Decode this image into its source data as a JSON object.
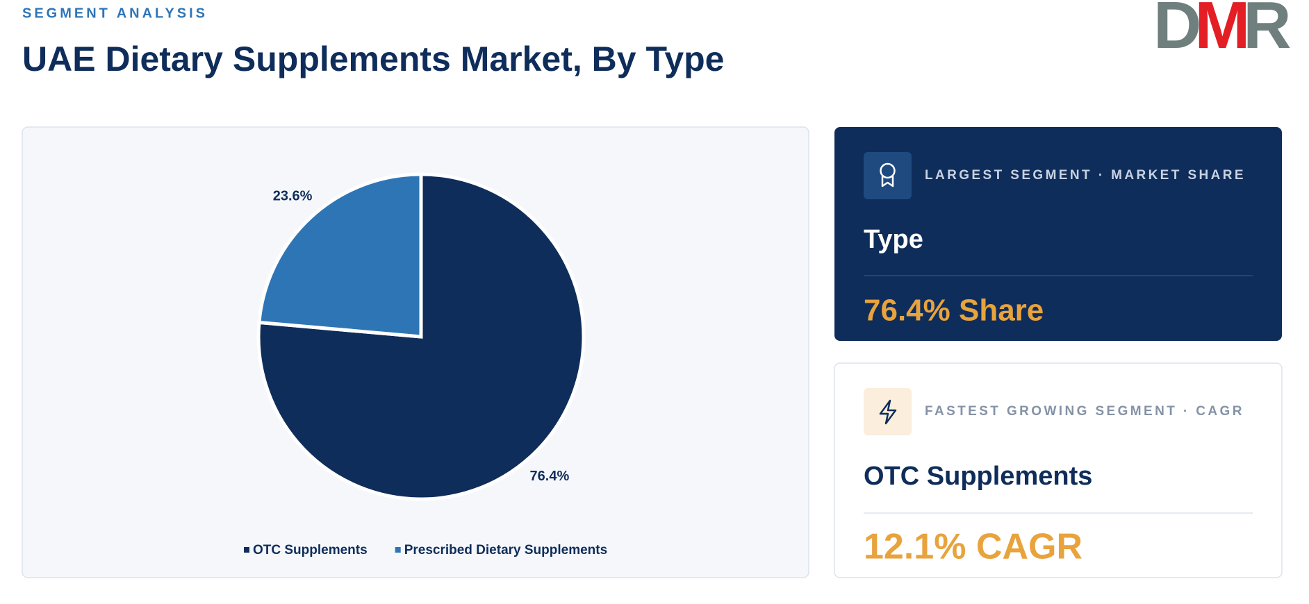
{
  "header": {
    "eyebrow": "SEGMENT ANALYSIS",
    "title": "UAE Dietary Supplements Market, By Type",
    "logo": [
      "D",
      "M",
      "R"
    ]
  },
  "chart_data": {
    "type": "pie",
    "categories": [
      "OTC Supplements",
      "Prescribed Dietary Supplements"
    ],
    "values": [
      76.4,
      23.6
    ],
    "value_labels": [
      "76.4%",
      "23.6%"
    ],
    "colors": [
      "#0f2d5a",
      "#2e75b6"
    ],
    "legend": "bottom"
  },
  "cards": [
    {
      "label": "LARGEST SEGMENT · MARKET SHARE",
      "heading": "Type",
      "value": "76.4% Share"
    },
    {
      "label": "FASTEST GROWING SEGMENT · CAGR",
      "heading": "OTC Supplements",
      "value": "12.1% CAGR"
    }
  ]
}
